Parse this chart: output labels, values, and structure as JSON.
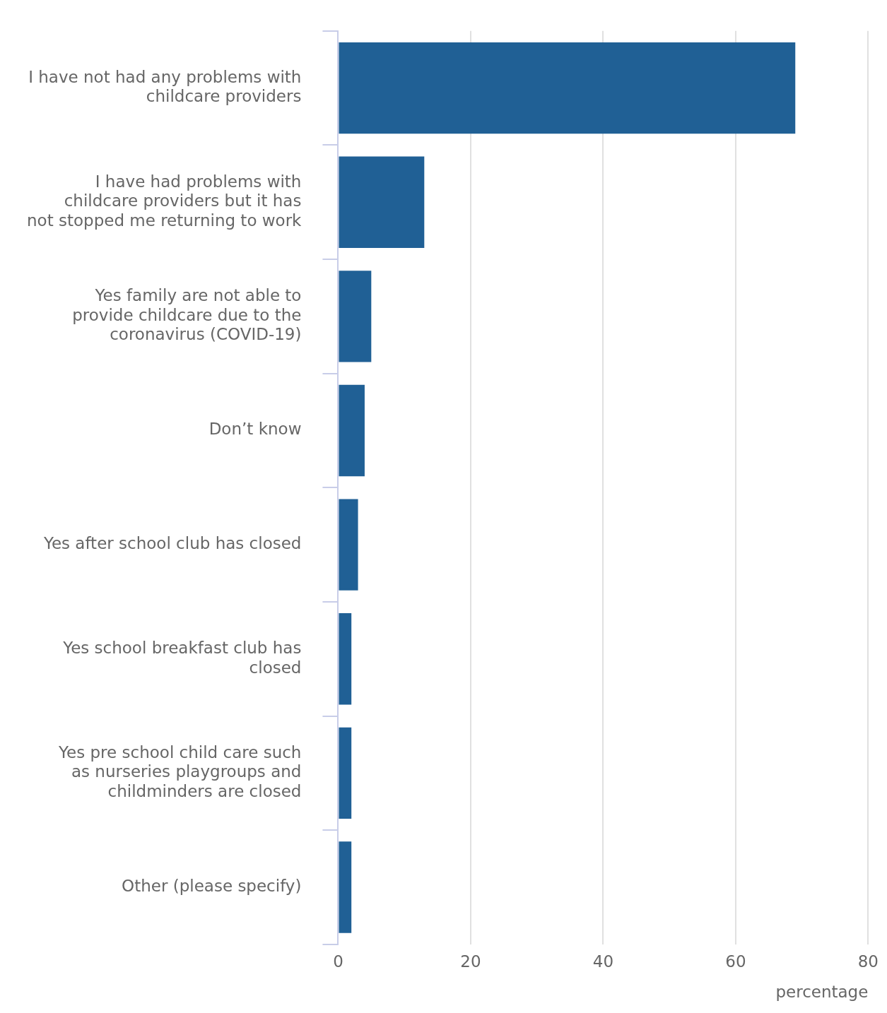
{
  "chart_data": {
    "type": "bar",
    "orientation": "horizontal",
    "xlabel": "percentage",
    "categories": [
      "I have not had any problems with childcare providers",
      "I have had problems with childcare providers but it has not stopped me returning to work",
      "Yes family are not able to provide childcare due to the coronavirus (COVID-19)",
      "Don’t know",
      "Yes after school club has closed",
      "Yes school breakfast club has closed",
      "Yes pre school child care such as nurseries playgroups and childminders are closed",
      "Other (please specify)"
    ],
    "values": [
      69,
      13,
      5,
      4,
      3,
      2,
      2,
      2
    ],
    "color": "#206095",
    "xlim": [
      0,
      80
    ],
    "xticks": [
      0,
      20,
      40,
      60,
      80
    ],
    "grid": "x",
    "legend": false
  }
}
